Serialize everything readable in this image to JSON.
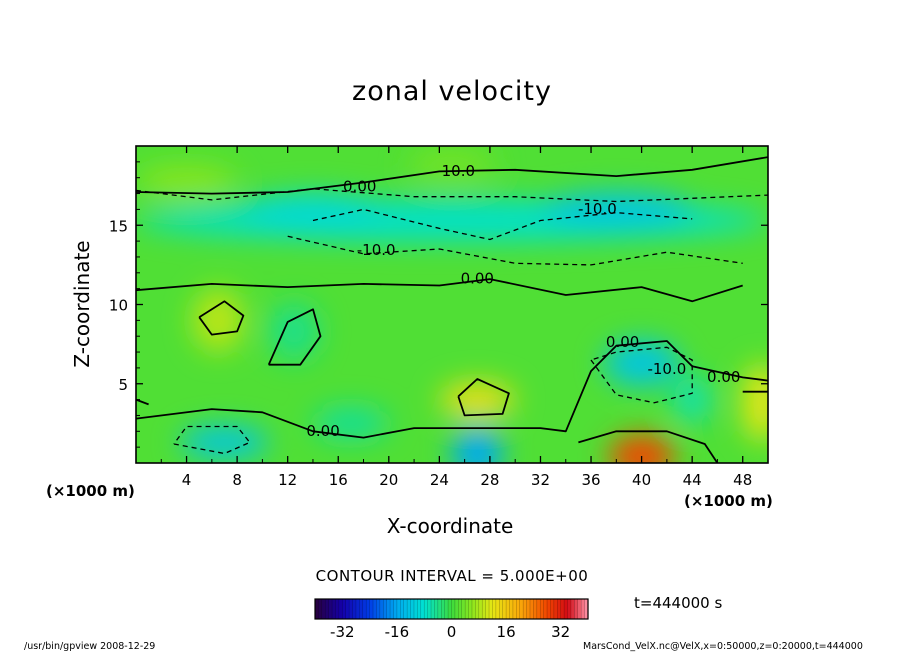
{
  "chart_data": {
    "type": "heatmap",
    "title": "zonal velocity",
    "xlabel": "X-coordinate",
    "ylabel": "Z-coordinate",
    "x_unit": "(×1000 m)",
    "y_unit": "(×1000 m)",
    "x_ticks": [
      4,
      8,
      12,
      16,
      20,
      24,
      28,
      32,
      36,
      40,
      44,
      48
    ],
    "y_ticks": [
      5,
      10,
      15
    ],
    "xlim": [
      0,
      50
    ],
    "ylim": [
      0,
      20
    ],
    "contour_labels": [
      {
        "text": "10.0",
        "x": 25.5,
        "y": 18.4
      },
      {
        "text": "0.00",
        "x": 17.7,
        "y": 17.4
      },
      {
        "text": "-10.0",
        "x": 36.5,
        "y": 16.0
      },
      {
        "text": "-10.0",
        "x": 19.0,
        "y": 13.4
      },
      {
        "text": "0.00",
        "x": 27.0,
        "y": 11.6
      },
      {
        "text": "0.00",
        "x": 38.5,
        "y": 7.6
      },
      {
        "text": "-10.0",
        "x": 42.0,
        "y": 5.9
      },
      {
        "text": "0.00",
        "x": 46.5,
        "y": 5.4
      },
      {
        "text": "0.00",
        "x": 14.8,
        "y": 2.0
      }
    ],
    "contour_interval": "CONTOUR INTERVAL = 5.000E+00",
    "time_label": "t=444000 s",
    "colorbar": {
      "ticks": [
        "-32",
        "-16",
        "0",
        "16",
        "32"
      ],
      "tick_values": [
        -32,
        -16,
        0,
        16,
        32
      ],
      "range": [
        -40,
        40
      ]
    },
    "regions": [
      {
        "x": 25,
        "y": 10,
        "v": 1.5
      },
      {
        "x": 25,
        "y": 15.3,
        "v": -7.5
      },
      {
        "x": 14,
        "y": 15.8,
        "v": -9
      },
      {
        "x": 38,
        "y": 16,
        "v": -12
      },
      {
        "x": 25,
        "y": 18.8,
        "v": 4
      },
      {
        "x": 4,
        "y": 17.8,
        "v": 6
      },
      {
        "x": 40,
        "y": 6.3,
        "v": -12
      },
      {
        "x": 40,
        "y": 0.4,
        "v": 28
      },
      {
        "x": 27,
        "y": 4,
        "v": 13
      },
      {
        "x": 27,
        "y": 0.6,
        "v": -16
      },
      {
        "x": 7,
        "y": 1.3,
        "v": -12
      },
      {
        "x": 49.5,
        "y": 3.8,
        "v": 12
      },
      {
        "x": 6.5,
        "y": 9,
        "v": 9
      },
      {
        "x": 12.5,
        "y": 8.3,
        "v": -4
      },
      {
        "x": 44,
        "y": 4,
        "v": -6
      },
      {
        "x": 17,
        "y": 2.5,
        "v": -5
      }
    ]
  },
  "footer": {
    "left": "/usr/bin/gpview   2008-12-29",
    "right": "MarsCond_VelX.nc@VelX,x=0:50000,z=0:20000,t=444000"
  }
}
